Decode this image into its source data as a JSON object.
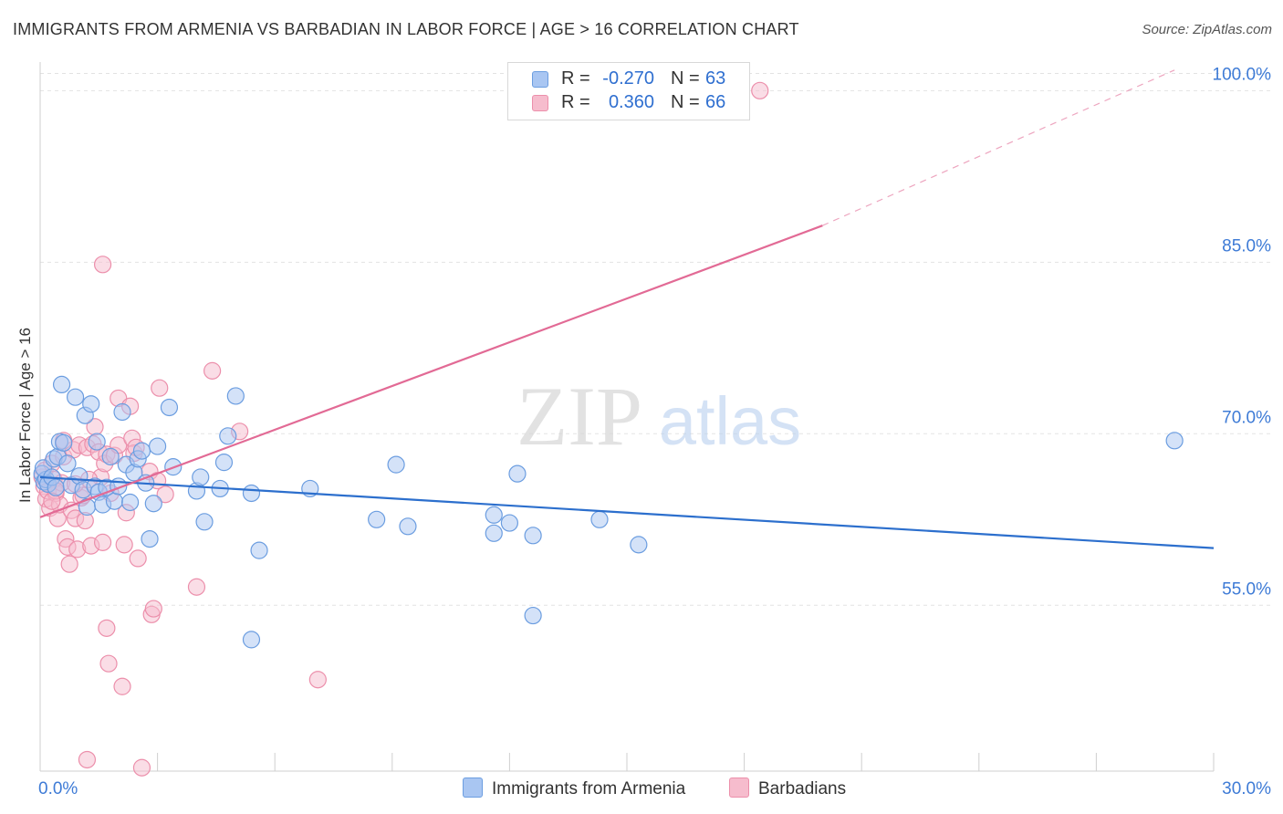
{
  "title": "IMMIGRANTS FROM ARMENIA VS BARBADIAN IN LABOR FORCE | AGE > 16 CORRELATION CHART",
  "source": "Source: ZipAtlas.com",
  "watermark": {
    "zip": "ZIP",
    "atlas": "atlas"
  },
  "legend": {
    "rows": [
      {
        "r_label": "R =",
        "r_value": "-0.270",
        "n_label": "N =",
        "n_value": "63"
      },
      {
        "r_label": "R =",
        "r_value": "0.360",
        "n_label": "N =",
        "n_value": "66"
      }
    ]
  },
  "bottom_legend": {
    "armenia": "Immigrants from Armenia",
    "barbadians": "Barbadians"
  },
  "colors": {
    "armenia_fill": "#a9c6f2",
    "armenia_stroke": "#6b9de0",
    "armenia_line": "#2c6fcd",
    "barbadian_fill": "#f6bccd",
    "barbadian_stroke": "#ec8fab",
    "barbadian_line": "#e26a95",
    "axis_text": "#3e7bd6",
    "grid": "#e3e3e3"
  },
  "chart_data": {
    "type": "scatter",
    "title": "IMMIGRANTS FROM ARMENIA VS BARBADIAN IN LABOR FORCE | AGE > 16 CORRELATION CHART",
    "xlabel": "",
    "ylabel": "In Labor Force | Age > 16",
    "xlim": [
      0,
      30
    ],
    "ylim": [
      40.5,
      102.5
    ],
    "x_tick_labels": [
      "0.0%",
      "30.0%"
    ],
    "y_ticks": [
      55,
      70,
      85,
      100
    ],
    "y_tick_labels": [
      "55.0%",
      "70.0%",
      "85.0%",
      "100.0%"
    ],
    "series": [
      {
        "name": "Immigrants from Armenia",
        "trend": {
          "x0": 0,
          "y0": 66.2,
          "x1": 30,
          "y1": 60.0
        },
        "points": [
          [
            0.05,
            66.5
          ],
          [
            0.1,
            65.8
          ],
          [
            0.15,
            66.0
          ],
          [
            0.2,
            65.6
          ],
          [
            0.08,
            67.0
          ],
          [
            0.3,
            66.2
          ],
          [
            0.35,
            67.8
          ],
          [
            0.4,
            65.3
          ],
          [
            0.45,
            68.0
          ],
          [
            0.5,
            69.3
          ],
          [
            0.55,
            74.3
          ],
          [
            0.6,
            69.2
          ],
          [
            0.7,
            67.4
          ],
          [
            0.8,
            65.5
          ],
          [
            0.9,
            73.2
          ],
          [
            1.0,
            66.3
          ],
          [
            1.1,
            65.1
          ],
          [
            1.15,
            71.6
          ],
          [
            1.2,
            63.6
          ],
          [
            1.3,
            72.6
          ],
          [
            1.4,
            65.4
          ],
          [
            1.45,
            69.3
          ],
          [
            1.5,
            64.9
          ],
          [
            1.6,
            63.8
          ],
          [
            1.7,
            65.3
          ],
          [
            1.8,
            68.0
          ],
          [
            1.9,
            64.1
          ],
          [
            2.0,
            65.4
          ],
          [
            2.1,
            71.9
          ],
          [
            2.2,
            67.3
          ],
          [
            2.3,
            64.0
          ],
          [
            2.4,
            66.6
          ],
          [
            2.5,
            67.8
          ],
          [
            2.6,
            68.5
          ],
          [
            2.7,
            65.7
          ],
          [
            2.8,
            60.8
          ],
          [
            2.9,
            63.9
          ],
          [
            3.0,
            68.9
          ],
          [
            3.3,
            72.3
          ],
          [
            3.4,
            67.1
          ],
          [
            4.0,
            65.0
          ],
          [
            4.1,
            66.2
          ],
          [
            4.2,
            62.3
          ],
          [
            4.6,
            65.2
          ],
          [
            4.7,
            67.5
          ],
          [
            4.8,
            69.8
          ],
          [
            5.0,
            73.3
          ],
          [
            5.4,
            64.8
          ],
          [
            5.6,
            59.8
          ],
          [
            5.4,
            52.0
          ],
          [
            6.9,
            65.2
          ],
          [
            8.6,
            62.5
          ],
          [
            9.1,
            67.3
          ],
          [
            9.4,
            61.9
          ],
          [
            11.6,
            62.9
          ],
          [
            11.6,
            61.3
          ],
          [
            12.0,
            62.2
          ],
          [
            12.2,
            66.5
          ],
          [
            12.6,
            61.1
          ],
          [
            12.6,
            54.1
          ],
          [
            14.3,
            62.5
          ],
          [
            15.3,
            60.3
          ],
          [
            29.0,
            69.4
          ]
        ]
      },
      {
        "name": "Barbadians",
        "trend": {
          "x0": 0,
          "y0": 62.7,
          "x1": 20.0,
          "y1": 88.2,
          "dash_x1": 29.0,
          "dash_y1": 101.8
        },
        "points": [
          [
            0.05,
            66.2
          ],
          [
            0.1,
            65.4
          ],
          [
            0.12,
            66.8
          ],
          [
            0.15,
            64.3
          ],
          [
            0.2,
            65.0
          ],
          [
            0.25,
            63.5
          ],
          [
            0.3,
            67.4
          ],
          [
            0.35,
            66.0
          ],
          [
            0.4,
            64.8
          ],
          [
            0.45,
            62.6
          ],
          [
            0.5,
            63.8
          ],
          [
            0.55,
            65.7
          ],
          [
            0.6,
            68.0
          ],
          [
            0.65,
            60.8
          ],
          [
            0.7,
            60.1
          ],
          [
            0.75,
            58.6
          ],
          [
            0.8,
            63.3
          ],
          [
            0.85,
            68.6
          ],
          [
            0.9,
            62.6
          ],
          [
            0.95,
            59.9
          ],
          [
            1.0,
            69.0
          ],
          [
            1.05,
            64.4
          ],
          [
            1.1,
            64.6
          ],
          [
            1.15,
            62.4
          ],
          [
            1.2,
            68.8
          ],
          [
            1.3,
            60.2
          ],
          [
            1.35,
            69.1
          ],
          [
            1.4,
            70.6
          ],
          [
            1.5,
            68.4
          ],
          [
            1.55,
            66.2
          ],
          [
            1.6,
            60.5
          ],
          [
            1.6,
            84.8
          ],
          [
            1.65,
            67.4
          ],
          [
            1.7,
            68.2
          ],
          [
            1.7,
            53.0
          ],
          [
            1.75,
            49.9
          ],
          [
            1.8,
            64.8
          ],
          [
            1.9,
            68.1
          ],
          [
            2.0,
            69.0
          ],
          [
            2.0,
            73.1
          ],
          [
            2.1,
            47.9
          ],
          [
            2.15,
            60.3
          ],
          [
            2.2,
            63.1
          ],
          [
            2.3,
            72.4
          ],
          [
            2.35,
            69.6
          ],
          [
            2.4,
            68.3
          ],
          [
            2.5,
            59.1
          ],
          [
            2.6,
            40.8
          ],
          [
            2.8,
            66.7
          ],
          [
            2.85,
            54.2
          ],
          [
            2.9,
            54.7
          ],
          [
            3.0,
            65.9
          ],
          [
            3.05,
            74.0
          ],
          [
            3.2,
            64.7
          ],
          [
            4.0,
            56.6
          ],
          [
            4.4,
            75.5
          ],
          [
            5.1,
            70.2
          ],
          [
            7.1,
            48.5
          ],
          [
            1.2,
            41.5
          ],
          [
            18.4,
            100.0
          ],
          [
            0.4,
            65.0
          ],
          [
            0.6,
            69.4
          ],
          [
            0.9,
            65.6
          ],
          [
            1.25,
            66.0
          ],
          [
            2.45,
            68.8
          ],
          [
            0.3,
            64.1
          ]
        ]
      }
    ]
  }
}
